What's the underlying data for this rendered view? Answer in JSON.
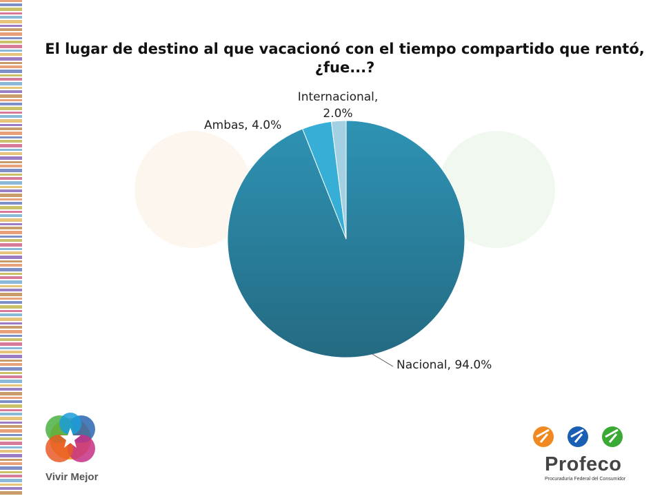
{
  "slide": {
    "title": "El lugar de destino al que vacacionó con el tiempo compartido que rentó, ¿fue...?"
  },
  "logos": {
    "left_text": "Vivir Mejor",
    "right_text": "Profeco",
    "right_subtext": "Procuraduría Federal del Consumidor"
  },
  "colors": {
    "nacional_dark": "#246a82",
    "nacional_light": "#2e93b4",
    "ambas": "#37aed6",
    "internacional": "#a3d0e2"
  },
  "chart_data": {
    "type": "pie",
    "title": "El lugar de destino al que vacacionó con el tiempo compartido que rentó, ¿fue...?",
    "categories": [
      "Nacional",
      "Ambas",
      "Internacional"
    ],
    "values": [
      94.0,
      4.0,
      2.0
    ],
    "labels": [
      "Nacional, 94.0%",
      "Ambas, 4.0%",
      "Internacional, 2.0%"
    ],
    "legend": "none"
  }
}
